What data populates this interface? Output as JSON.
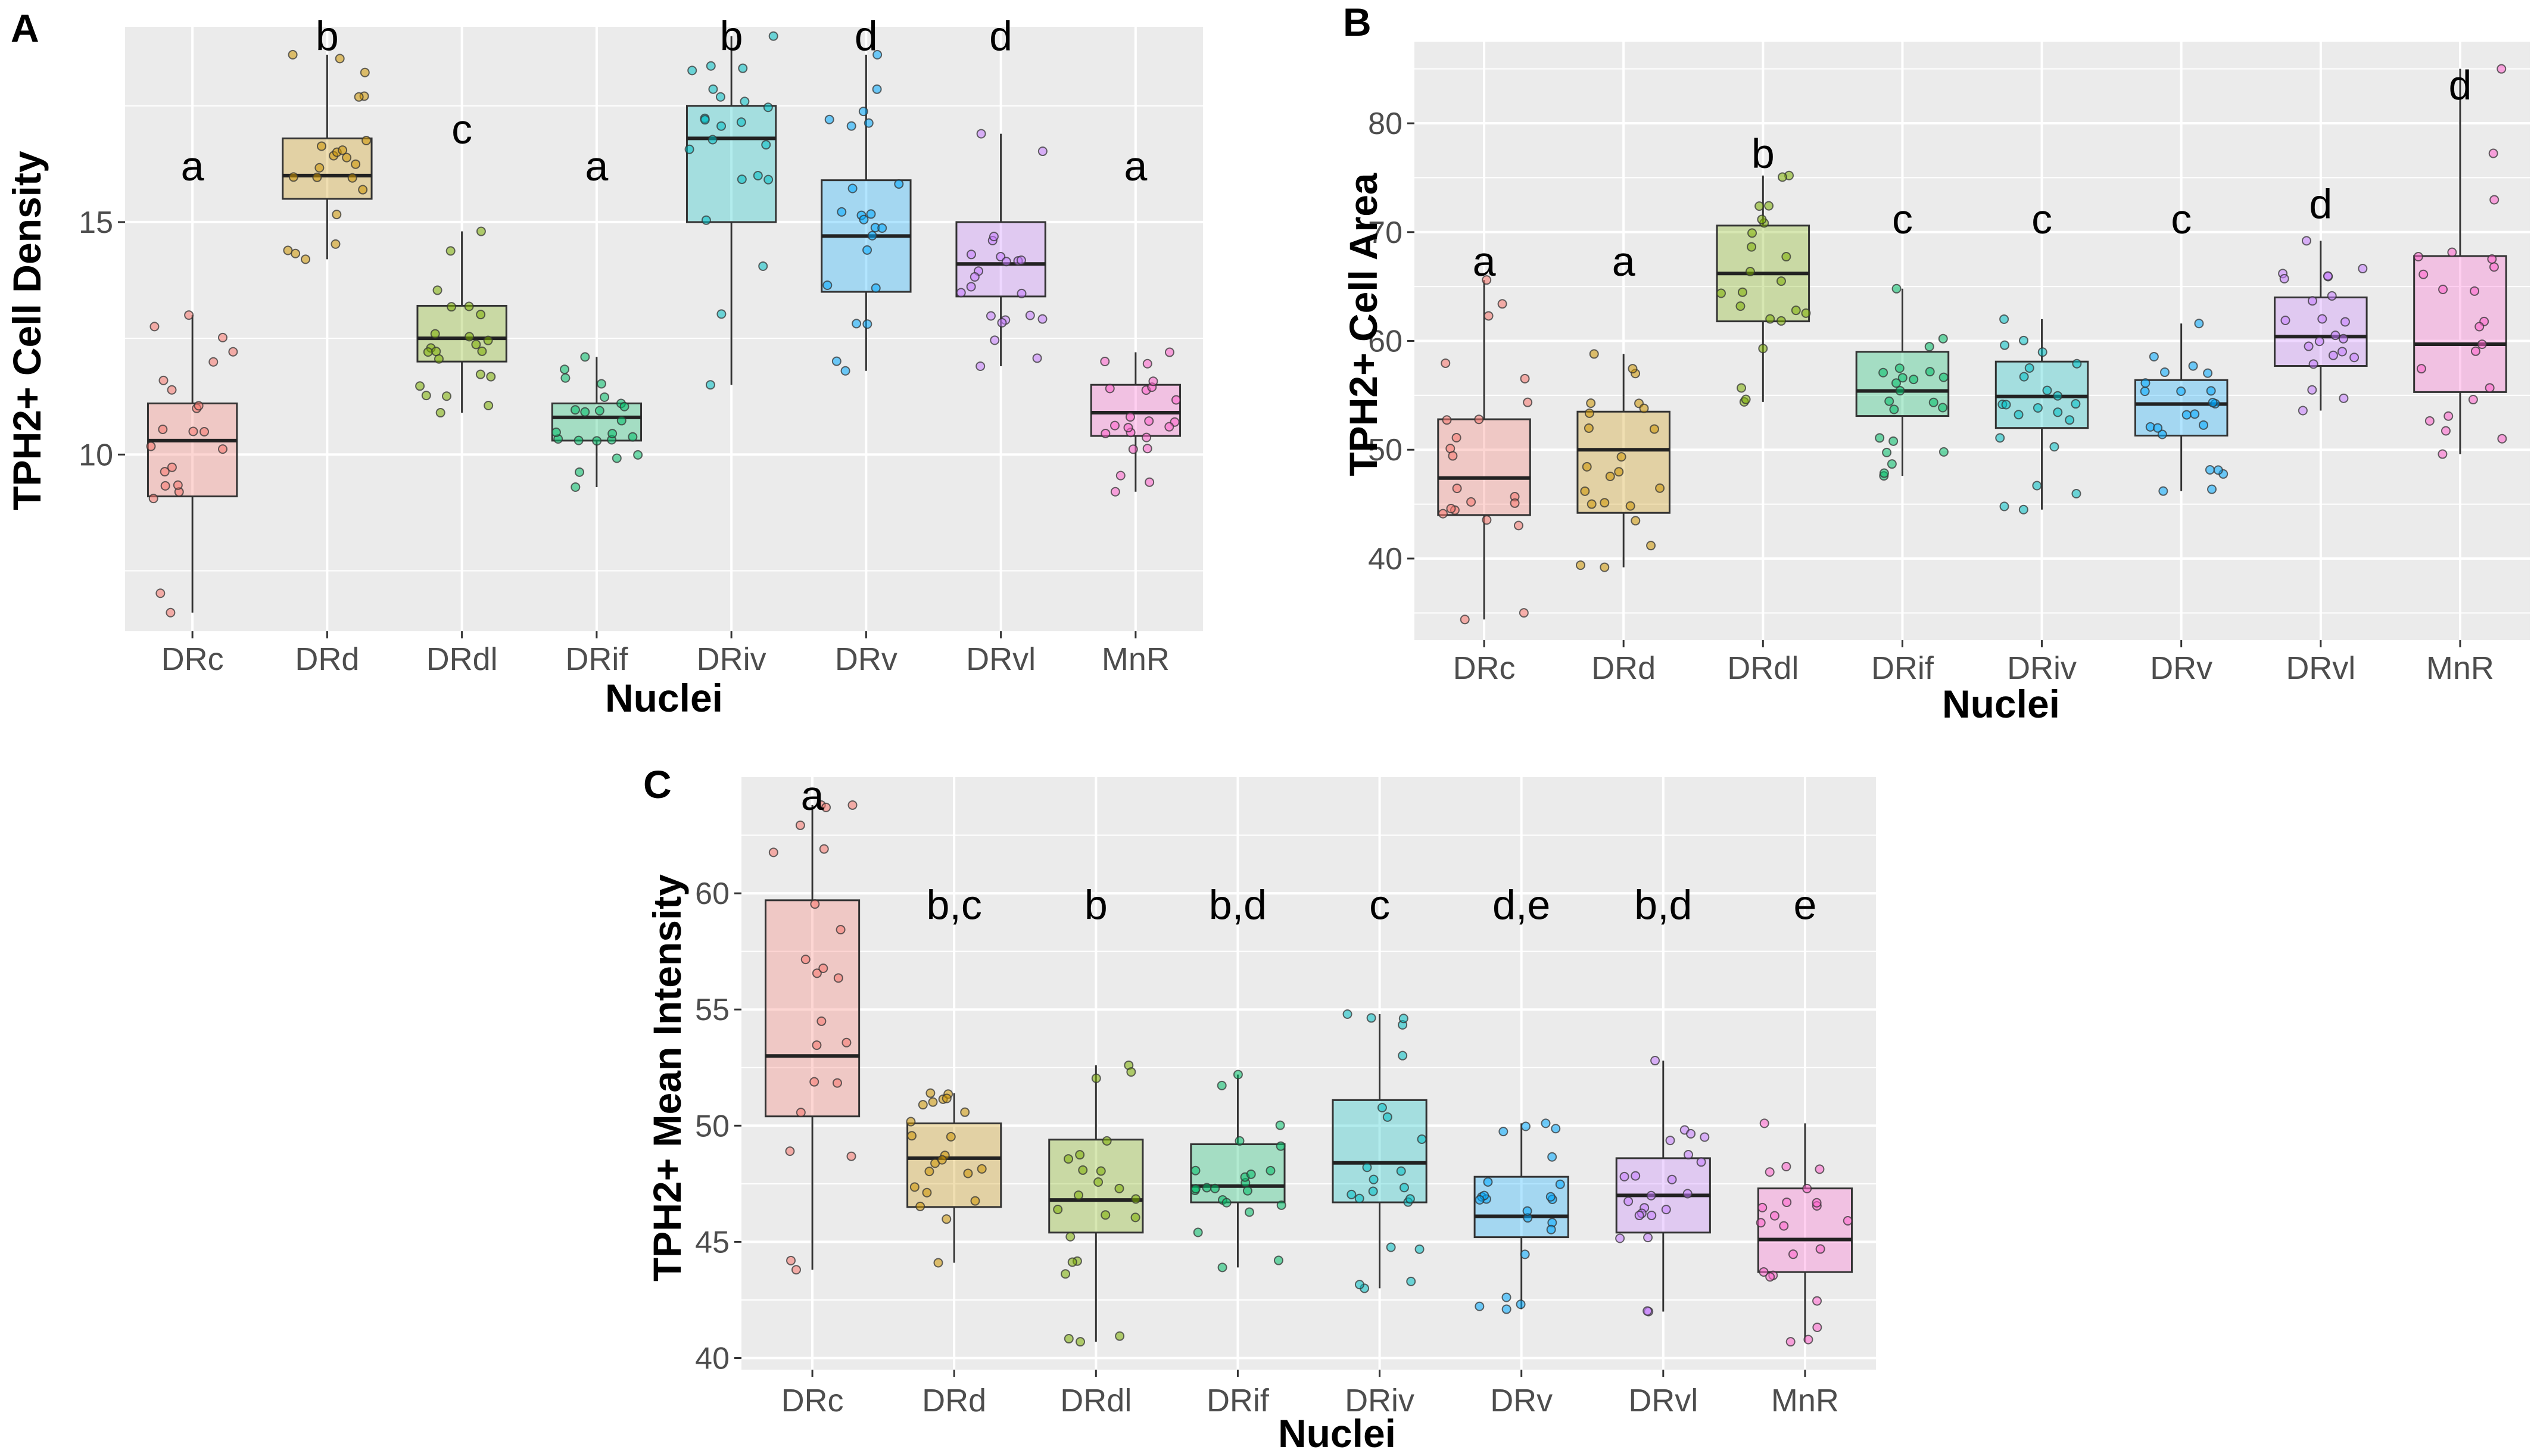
{
  "chart_data": [
    {
      "panel": "A",
      "type": "box",
      "xlabel": "Nuclei",
      "ylabel": "TPH2+ Cell Density",
      "ylim": [
        6.2,
        19.2
      ],
      "yticks": [
        10,
        15
      ],
      "categories": [
        "DRc",
        "DRd",
        "DRdl",
        "DRif",
        "DRiv",
        "DRv",
        "DRvl",
        "MnR"
      ],
      "colors": [
        "#F8766D",
        "#CD9600",
        "#7CAE00",
        "#00BE67",
        "#00BFC4",
        "#00A9FF",
        "#C77CFF",
        "#FF61CC"
      ],
      "boxes": [
        {
          "min": 6.6,
          "q1": 9.1,
          "median": 10.3,
          "q3": 11.1,
          "max": 13.0
        },
        {
          "min": 14.2,
          "q1": 15.5,
          "median": 16.0,
          "q3": 16.8,
          "max": 18.6
        },
        {
          "min": 10.9,
          "q1": 12.0,
          "median": 12.5,
          "q3": 13.2,
          "max": 14.8
        },
        {
          "min": 9.3,
          "q1": 10.3,
          "median": 10.8,
          "q3": 11.1,
          "max": 12.1
        },
        {
          "min": 11.5,
          "q1": 15.0,
          "median": 16.8,
          "q3": 17.5,
          "max": 19.0
        },
        {
          "min": 11.8,
          "q1": 13.5,
          "median": 14.7,
          "q3": 15.9,
          "max": 18.6
        },
        {
          "min": 11.9,
          "q1": 13.4,
          "median": 14.1,
          "q3": 15.0,
          "max": 16.9
        },
        {
          "min": 9.2,
          "q1": 10.4,
          "median": 10.9,
          "q3": 11.5,
          "max": 12.2
        }
      ],
      "significance": [
        "a",
        "b",
        "c",
        "a",
        "b",
        "d",
        "d",
        "a"
      ],
      "significance_y": [
        16.2,
        19.0,
        17.0,
        16.2,
        19.0,
        19.0,
        19.0,
        16.2
      ]
    },
    {
      "panel": "B",
      "type": "box",
      "xlabel": "Nuclei",
      "ylabel": "TPH2+ Cell Area",
      "ylim": [
        32.5,
        87.5
      ],
      "yticks": [
        40,
        50,
        60,
        70,
        80
      ],
      "categories": [
        "DRc",
        "DRd",
        "DRdl",
        "DRif",
        "DRiv",
        "DRv",
        "DRvl",
        "MnR"
      ],
      "colors": [
        "#F8766D",
        "#CD9600",
        "#7CAE00",
        "#00BE67",
        "#00BFC4",
        "#00A9FF",
        "#C77CFF",
        "#FF61CC"
      ],
      "boxes": [
        {
          "min": 34.4,
          "q1": 44.0,
          "median": 47.4,
          "q3": 52.8,
          "max": 65.6
        },
        {
          "min": 39.2,
          "q1": 44.2,
          "median": 50.0,
          "q3": 53.5,
          "max": 58.8
        },
        {
          "min": 54.4,
          "q1": 61.8,
          "median": 66.2,
          "q3": 70.6,
          "max": 75.2
        },
        {
          "min": 47.6,
          "q1": 53.1,
          "median": 55.4,
          "q3": 59.0,
          "max": 64.8
        },
        {
          "min": 44.5,
          "q1": 52.0,
          "median": 54.9,
          "q3": 58.1,
          "max": 62.0
        },
        {
          "min": 46.2,
          "q1": 51.3,
          "median": 54.2,
          "q3": 56.4,
          "max": 61.6
        },
        {
          "min": 53.6,
          "q1": 57.7,
          "median": 60.4,
          "q3": 64.0,
          "max": 69.2
        },
        {
          "min": 49.6,
          "q1": 55.3,
          "median": 59.7,
          "q3": 67.8,
          "max": 85.0
        }
      ],
      "significance": [
        "a",
        "a",
        "b",
        "c",
        "c",
        "c",
        "d",
        "d"
      ],
      "significance_y": [
        67.3,
        67.3,
        77.2,
        71.2,
        71.2,
        71.2,
        72.6,
        83.5
      ]
    },
    {
      "panel": "C",
      "type": "box",
      "xlabel": "Nuclei",
      "ylabel": "TPH2+ Mean Intensity",
      "ylim": [
        39.5,
        65.0
      ],
      "yticks": [
        40,
        45,
        50,
        55,
        60
      ],
      "categories": [
        "DRc",
        "DRd",
        "DRdl",
        "DRif",
        "DRiv",
        "DRv",
        "DRvl",
        "MnR"
      ],
      "colors": [
        "#F8766D",
        "#CD9600",
        "#7CAE00",
        "#00BE67",
        "#00BFC4",
        "#00A9FF",
        "#C77CFF",
        "#FF61CC"
      ],
      "boxes": [
        {
          "min": 43.8,
          "q1": 50.4,
          "median": 53.0,
          "q3": 59.7,
          "max": 63.8
        },
        {
          "min": 44.1,
          "q1": 46.5,
          "median": 48.6,
          "q3": 50.1,
          "max": 51.4
        },
        {
          "min": 40.7,
          "q1": 45.4,
          "median": 46.8,
          "q3": 49.4,
          "max": 52.6
        },
        {
          "min": 43.9,
          "q1": 46.7,
          "median": 47.4,
          "q3": 49.2,
          "max": 52.2
        },
        {
          "min": 43.0,
          "q1": 46.7,
          "median": 48.4,
          "q3": 51.1,
          "max": 54.8
        },
        {
          "min": 42.1,
          "q1": 45.2,
          "median": 46.1,
          "q3": 47.8,
          "max": 50.1
        },
        {
          "min": 42.0,
          "q1": 45.4,
          "median": 47.0,
          "q3": 48.6,
          "max": 52.8
        },
        {
          "min": 40.7,
          "q1": 43.7,
          "median": 45.1,
          "q3": 47.3,
          "max": 50.1
        }
      ],
      "significance": [
        "a",
        "b,c",
        "b",
        "b,d",
        "c",
        "d,e",
        "b,d",
        "e"
      ],
      "significance_y": [
        64.2,
        59.5,
        59.5,
        59.5,
        59.5,
        59.5,
        59.5,
        59.5
      ]
    }
  ]
}
